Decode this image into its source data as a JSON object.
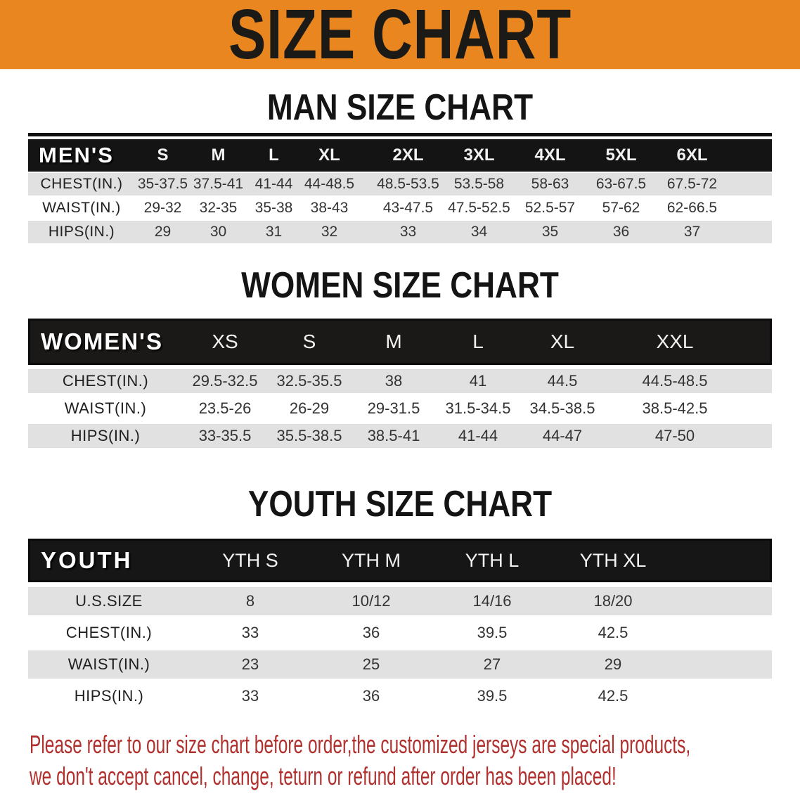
{
  "banner": {
    "title": "SIZE CHART"
  },
  "colors": {
    "banner_orange": "#EA861F",
    "header_black": "#161616",
    "row_gray": "#E1E1E1",
    "disclaimer_red": "#B0302E"
  },
  "man_section": {
    "heading": "MAN SIZE CHART"
  },
  "mens_table": {
    "category_label": "MEN'S",
    "sizes": [
      "S",
      "M",
      "L",
      "XL",
      "2XL",
      "3XL",
      "4XL",
      "5XL",
      "6XL"
    ],
    "rows": [
      {
        "label": "CHEST(IN.)",
        "values": [
          "35-37.5",
          "37.5-41",
          "41-44",
          "44-48.5",
          "48.5-53.5",
          "53.5-58",
          "58-63",
          "63-67.5",
          "67.5-72"
        ]
      },
      {
        "label": "WAIST(IN.)",
        "values": [
          "29-32",
          "32-35",
          "35-38",
          "38-43",
          "43-47.5",
          "47.5-52.5",
          "52.5-57",
          "57-62",
          "62-66.5"
        ]
      },
      {
        "label": "HIPS(IN.)",
        "values": [
          "29",
          "30",
          "31",
          "32",
          "33",
          "34",
          "35",
          "36",
          "37"
        ]
      }
    ]
  },
  "women_section": {
    "heading": "WOMEN SIZE CHART"
  },
  "womens_table": {
    "category_label": "WOMEN'S",
    "sizes": [
      "XS",
      "S",
      "M",
      "L",
      "XL",
      "XXL"
    ],
    "rows": [
      {
        "label": "CHEST(IN.)",
        "values": [
          "29.5-32.5",
          "32.5-35.5",
          "38",
          "41",
          "44.5",
          "44.5-48.5"
        ]
      },
      {
        "label": "WAIST(IN.)",
        "values": [
          "23.5-26",
          "26-29",
          "29-31.5",
          "31.5-34.5",
          "34.5-38.5",
          "38.5-42.5"
        ]
      },
      {
        "label": "HIPS(IN.)",
        "values": [
          "33-35.5",
          "35.5-38.5",
          "38.5-41",
          "41-44",
          "44-47",
          "47-50"
        ]
      }
    ]
  },
  "youth_section": {
    "heading": "YOUTH SIZE CHART"
  },
  "youth_table": {
    "category_label": "YOUTH",
    "sizes": [
      "YTH S",
      "YTH M",
      "YTH L",
      "YTH XL"
    ],
    "rows": [
      {
        "label": "U.S.SIZE",
        "values": [
          "8",
          "10/12",
          "14/16",
          "18/20"
        ]
      },
      {
        "label": "CHEST(IN.)",
        "values": [
          "33",
          "36",
          "39.5",
          "42.5"
        ]
      },
      {
        "label": "WAIST(IN.)",
        "values": [
          "23",
          "25",
          "27",
          "29"
        ]
      },
      {
        "label": "HIPS(IN.)",
        "values": [
          "33",
          "36",
          "39.5",
          "42.5"
        ]
      }
    ]
  },
  "disclaimer": {
    "line1": "Please refer to our size chart before order,the customized jerseys are special products,",
    "line2": "we don't accept cancel, change, teturn or refund after order has been placed!"
  }
}
